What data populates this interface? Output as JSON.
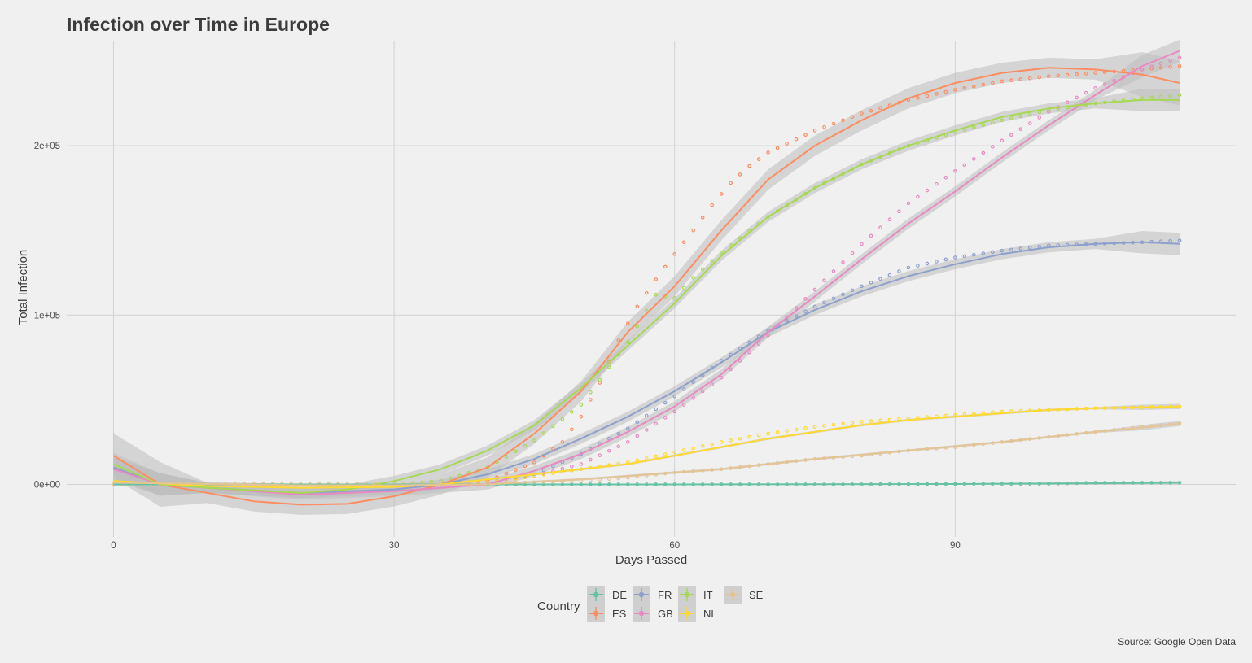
{
  "chart_data": {
    "type": "scatter",
    "title": "Infection over Time in Europe",
    "xlabel": "Days Passed",
    "ylabel": "Total Infection",
    "caption": "Source: Google Open Data",
    "legend_title": "Country",
    "legend_position": "bottom",
    "grid": true,
    "smooth": "loess with grey confidence band",
    "xlim": [
      -5,
      120
    ],
    "ylim": [
      -31000,
      262000
    ],
    "x_ticks": [
      0,
      30,
      60,
      90
    ],
    "y_ticks": [
      0,
      100000,
      200000
    ],
    "y_tick_labels": [
      "0e+00",
      "1e+05",
      "2e+05"
    ],
    "series": [
      {
        "name": "DE",
        "color": "#66c2a5",
        "points": [
          [
            0,
            0
          ],
          [
            30,
            0
          ],
          [
            40,
            0
          ],
          [
            50,
            0
          ],
          [
            60,
            0
          ],
          [
            70,
            0
          ],
          [
            80,
            0
          ],
          [
            90,
            300
          ],
          [
            100,
            400
          ],
          [
            105,
            1000
          ],
          [
            114,
            1000
          ]
        ],
        "fit": [
          [
            0,
            0
          ],
          [
            30,
            0
          ],
          [
            60,
            0
          ],
          [
            90,
            200
          ],
          [
            114,
            1000
          ]
        ],
        "band": 400
      },
      {
        "name": "ES",
        "color": "#fc8d62",
        "points": [
          [
            0,
            0
          ],
          [
            20,
            0
          ],
          [
            30,
            0
          ],
          [
            35,
            0
          ],
          [
            40,
            2000
          ],
          [
            45,
            13000
          ],
          [
            48,
            25000
          ],
          [
            50,
            40000
          ],
          [
            52,
            60000
          ],
          [
            54,
            85000
          ],
          [
            56,
            105000
          ],
          [
            58,
            121000
          ],
          [
            60,
            136000
          ],
          [
            62,
            150000
          ],
          [
            64,
            165000
          ],
          [
            66,
            178000
          ],
          [
            68,
            188000
          ],
          [
            70,
            196000
          ],
          [
            75,
            209000
          ],
          [
            80,
            219000
          ],
          [
            85,
            227000
          ],
          [
            90,
            233000
          ],
          [
            95,
            238000
          ],
          [
            100,
            241000
          ],
          [
            105,
            243000
          ],
          [
            110,
            245000
          ],
          [
            114,
            247000
          ]
        ],
        "fit": [
          [
            0,
            17000
          ],
          [
            5,
            0
          ],
          [
            10,
            -5000
          ],
          [
            15,
            -10000
          ],
          [
            20,
            -12000
          ],
          [
            25,
            -11500
          ],
          [
            30,
            -7000
          ],
          [
            35,
            0
          ],
          [
            40,
            10000
          ],
          [
            45,
            30000
          ],
          [
            50,
            55000
          ],
          [
            55,
            90000
          ],
          [
            60,
            117000
          ],
          [
            65,
            150000
          ],
          [
            70,
            180000
          ],
          [
            75,
            200000
          ],
          [
            80,
            215000
          ],
          [
            85,
            228000
          ],
          [
            90,
            237000
          ],
          [
            95,
            243000
          ],
          [
            100,
            246000
          ],
          [
            105,
            245000
          ],
          [
            110,
            242000
          ],
          [
            114,
            237000
          ]
        ],
        "band": 6000
      },
      {
        "name": "FR",
        "color": "#8da0cb",
        "points": [
          [
            0,
            0
          ],
          [
            30,
            0
          ],
          [
            35,
            0
          ],
          [
            40,
            1000
          ],
          [
            45,
            6000
          ],
          [
            50,
            18000
          ],
          [
            55,
            33000
          ],
          [
            60,
            52000
          ],
          [
            65,
            73000
          ],
          [
            70,
            91000
          ],
          [
            75,
            105000
          ],
          [
            80,
            117000
          ],
          [
            85,
            128000
          ],
          [
            90,
            134000
          ],
          [
            95,
            138000
          ],
          [
            100,
            141000
          ],
          [
            105,
            142000
          ],
          [
            110,
            143000
          ],
          [
            114,
            144000
          ]
        ],
        "fit": [
          [
            0,
            10000
          ],
          [
            5,
            0
          ],
          [
            10,
            -2000
          ],
          [
            20,
            -5000
          ],
          [
            30,
            -3000
          ],
          [
            35,
            0
          ],
          [
            40,
            6000
          ],
          [
            45,
            15000
          ],
          [
            50,
            27000
          ],
          [
            55,
            40000
          ],
          [
            60,
            55000
          ],
          [
            65,
            72000
          ],
          [
            70,
            90000
          ],
          [
            75,
            103000
          ],
          [
            80,
            114000
          ],
          [
            85,
            123000
          ],
          [
            90,
            130000
          ],
          [
            95,
            136000
          ],
          [
            100,
            140000
          ],
          [
            105,
            142000
          ],
          [
            110,
            143000
          ],
          [
            114,
            142000
          ]
        ],
        "band": 3000
      },
      {
        "name": "GB",
        "color": "#e78ac3",
        "points": [
          [
            0,
            0
          ],
          [
            30,
            0
          ],
          [
            35,
            0
          ],
          [
            40,
            1000
          ],
          [
            45,
            5000
          ],
          [
            50,
            12000
          ],
          [
            55,
            25000
          ],
          [
            60,
            43000
          ],
          [
            65,
            63000
          ],
          [
            70,
            88000
          ],
          [
            75,
            115000
          ],
          [
            80,
            142000
          ],
          [
            85,
            166000
          ],
          [
            90,
            185000
          ],
          [
            95,
            203000
          ],
          [
            100,
            220000
          ],
          [
            105,
            234000
          ],
          [
            110,
            245000
          ],
          [
            114,
            252000
          ]
        ],
        "fit": [
          [
            0,
            9000
          ],
          [
            5,
            0
          ],
          [
            10,
            -2000
          ],
          [
            20,
            -6000
          ],
          [
            30,
            -4000
          ],
          [
            40,
            0
          ],
          [
            45,
            8000
          ],
          [
            50,
            18000
          ],
          [
            55,
            31000
          ],
          [
            60,
            46000
          ],
          [
            65,
            65000
          ],
          [
            70,
            90000
          ],
          [
            75,
            111000
          ],
          [
            80,
            133000
          ],
          [
            85,
            154000
          ],
          [
            90,
            173000
          ],
          [
            95,
            193000
          ],
          [
            100,
            212000
          ],
          [
            105,
            230000
          ],
          [
            110,
            247000
          ],
          [
            114,
            256000
          ]
        ],
        "band": 3000
      },
      {
        "name": "IT",
        "color": "#a6d854",
        "points": [
          [
            0,
            0
          ],
          [
            20,
            0
          ],
          [
            25,
            0
          ],
          [
            30,
            0
          ],
          [
            35,
            2000
          ],
          [
            40,
            10000
          ],
          [
            45,
            26000
          ],
          [
            50,
            47000
          ],
          [
            55,
            84000
          ],
          [
            58,
            112000
          ],
          [
            60,
            110000
          ],
          [
            62,
            122000
          ],
          [
            65,
            137000
          ],
          [
            70,
            158000
          ],
          [
            75,
            175000
          ],
          [
            80,
            189000
          ],
          [
            85,
            200000
          ],
          [
            90,
            208000
          ],
          [
            95,
            215000
          ],
          [
            100,
            221000
          ],
          [
            105,
            225000
          ],
          [
            110,
            228000
          ],
          [
            114,
            230000
          ]
        ],
        "fit": [
          [
            0,
            12000
          ],
          [
            5,
            0
          ],
          [
            10,
            -2000
          ],
          [
            20,
            -5000
          ],
          [
            25,
            -3000
          ],
          [
            30,
            2000
          ],
          [
            35,
            9000
          ],
          [
            40,
            20000
          ],
          [
            45,
            35000
          ],
          [
            50,
            57000
          ],
          [
            55,
            82000
          ],
          [
            60,
            107000
          ],
          [
            65,
            135000
          ],
          [
            70,
            158000
          ],
          [
            75,
            175000
          ],
          [
            80,
            189000
          ],
          [
            85,
            200000
          ],
          [
            90,
            209000
          ],
          [
            95,
            217000
          ],
          [
            100,
            222000
          ],
          [
            105,
            225000
          ],
          [
            110,
            227000
          ],
          [
            114,
            227000
          ]
        ],
        "band": 3000
      },
      {
        "name": "NL",
        "color": "#ffd92f",
        "points": [
          [
            0,
            0
          ],
          [
            30,
            0
          ],
          [
            35,
            0
          ],
          [
            40,
            1000
          ],
          [
            45,
            5000
          ],
          [
            50,
            9000
          ],
          [
            55,
            13000
          ],
          [
            60,
            19000
          ],
          [
            65,
            25000
          ],
          [
            70,
            30000
          ],
          [
            75,
            34000
          ],
          [
            80,
            37000
          ],
          [
            85,
            39000
          ],
          [
            90,
            41000
          ],
          [
            95,
            43000
          ],
          [
            100,
            44000
          ],
          [
            105,
            45000
          ],
          [
            110,
            45500
          ],
          [
            114,
            46000
          ]
        ],
        "fit": [
          [
            0,
            2000
          ],
          [
            10,
            -1000
          ],
          [
            20,
            -2000
          ],
          [
            30,
            -1500
          ],
          [
            35,
            0
          ],
          [
            40,
            3000
          ],
          [
            45,
            6000
          ],
          [
            50,
            9000
          ],
          [
            55,
            12000
          ],
          [
            60,
            17000
          ],
          [
            65,
            22000
          ],
          [
            70,
            27000
          ],
          [
            75,
            31000
          ],
          [
            80,
            35000
          ],
          [
            85,
            38000
          ],
          [
            90,
            40000
          ],
          [
            95,
            42000
          ],
          [
            100,
            44000
          ],
          [
            105,
            45000
          ],
          [
            110,
            45500
          ],
          [
            114,
            46000
          ]
        ],
        "band": 700
      },
      {
        "name": "SE",
        "color": "#e5c494",
        "points": [
          [
            0,
            0
          ],
          [
            30,
            0
          ],
          [
            40,
            500
          ],
          [
            50,
            2000
          ],
          [
            55,
            4000
          ],
          [
            60,
            7000
          ],
          [
            65,
            9000
          ],
          [
            70,
            12000
          ],
          [
            75,
            15000
          ],
          [
            80,
            17000
          ],
          [
            85,
            20000
          ],
          [
            90,
            22000
          ],
          [
            95,
            25000
          ],
          [
            100,
            28000
          ],
          [
            105,
            31000
          ],
          [
            110,
            34000
          ],
          [
            114,
            36000
          ]
        ],
        "fit": [
          [
            0,
            1000
          ],
          [
            20,
            -500
          ],
          [
            30,
            -500
          ],
          [
            40,
            0
          ],
          [
            45,
            1500
          ],
          [
            50,
            3000
          ],
          [
            55,
            5000
          ],
          [
            60,
            7000
          ],
          [
            65,
            9000
          ],
          [
            70,
            12000
          ],
          [
            75,
            15000
          ],
          [
            80,
            17500
          ],
          [
            85,
            20000
          ],
          [
            90,
            22500
          ],
          [
            95,
            25000
          ],
          [
            100,
            28000
          ],
          [
            105,
            31000
          ],
          [
            110,
            33500
          ],
          [
            114,
            36000
          ]
        ],
        "band": 700
      }
    ]
  }
}
